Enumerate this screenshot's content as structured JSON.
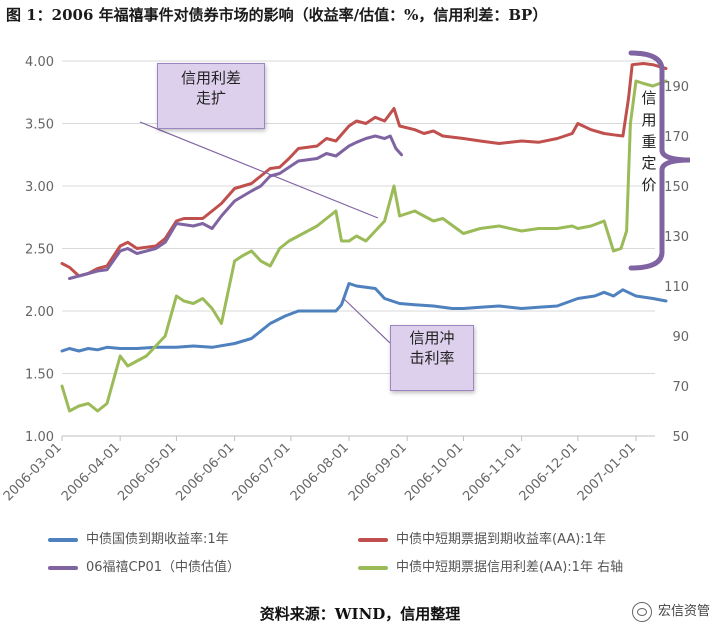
{
  "title": "图 1：2006 年福禧事件对债券市场的影响（收益率/估值：%，信用利差：BP）",
  "callouts": {
    "spread_widen": "信用利差\n走扩",
    "credit_shock": "信用冲\n击利率",
    "repricing": "信用重定价"
  },
  "source": "资料来源：WIND，信用整理",
  "brand": "宏信资管",
  "colors": {
    "gov": "#4e81bd",
    "mtn_yield": "#c0504d",
    "cp01": "#8064a2",
    "spread": "#9bbb59",
    "callout_bg": "#ddd0ec",
    "brace": "#8064a2"
  },
  "chart_data": {
    "type": "line",
    "x_ticks": [
      "2006-03-01",
      "2006-04-01",
      "2006-05-01",
      "2006-06-01",
      "2006-07-01",
      "2006-08-01",
      "2006-09-01",
      "2006-10-01",
      "2006-11-01",
      "2006-12-01",
      "2007-01-01"
    ],
    "y_left": {
      "ticks": [
        "1.00",
        "1.50",
        "2.00",
        "2.50",
        "3.00",
        "3.50",
        "4.00"
      ],
      "range": [
        1.0,
        4.0
      ]
    },
    "y_right": {
      "ticks": [
        "50",
        "70",
        "90",
        "110",
        "130",
        "150",
        "170",
        "190"
      ],
      "range": [
        50,
        200
      ]
    },
    "series": [
      {
        "name": "中债国债到期收益率:1年",
        "axis": "left",
        "color_key": "gov",
        "points": [
          [
            "2006-03-01",
            1.68
          ],
          [
            "2006-03-05",
            1.7
          ],
          [
            "2006-03-10",
            1.68
          ],
          [
            "2006-03-15",
            1.7
          ],
          [
            "2006-03-20",
            1.69
          ],
          [
            "2006-03-25",
            1.71
          ],
          [
            "2006-04-01",
            1.7
          ],
          [
            "2006-04-10",
            1.7
          ],
          [
            "2006-04-20",
            1.71
          ],
          [
            "2006-05-01",
            1.71
          ],
          [
            "2006-05-10",
            1.72
          ],
          [
            "2006-05-20",
            1.71
          ],
          [
            "2006-06-01",
            1.74
          ],
          [
            "2006-06-10",
            1.78
          ],
          [
            "2006-06-20",
            1.9
          ],
          [
            "2006-06-28",
            1.96
          ],
          [
            "2006-07-05",
            2.0
          ],
          [
            "2006-07-15",
            2.0
          ],
          [
            "2006-07-25",
            2.0
          ],
          [
            "2006-07-28",
            2.05
          ],
          [
            "2006-08-01",
            2.22
          ],
          [
            "2006-08-05",
            2.2
          ],
          [
            "2006-08-15",
            2.18
          ],
          [
            "2006-08-20",
            2.1
          ],
          [
            "2006-08-28",
            2.06
          ],
          [
            "2006-09-05",
            2.05
          ],
          [
            "2006-09-15",
            2.04
          ],
          [
            "2006-09-25",
            2.02
          ],
          [
            "2006-10-01",
            2.02
          ],
          [
            "2006-10-10",
            2.03
          ],
          [
            "2006-10-20",
            2.04
          ],
          [
            "2006-11-01",
            2.02
          ],
          [
            "2006-11-10",
            2.03
          ],
          [
            "2006-11-20",
            2.04
          ],
          [
            "2006-12-01",
            2.1
          ],
          [
            "2006-12-10",
            2.12
          ],
          [
            "2006-12-15",
            2.15
          ],
          [
            "2006-12-20",
            2.12
          ],
          [
            "2006-12-25",
            2.17
          ],
          [
            "2007-01-01",
            2.12
          ],
          [
            "2007-01-10",
            2.1
          ],
          [
            "2007-01-17",
            2.08
          ]
        ]
      },
      {
        "name": "中债中短期票据到期收益率(AA):1年",
        "axis": "left",
        "color_key": "mtn_yield",
        "points": [
          [
            "2006-03-01",
            2.38
          ],
          [
            "2006-03-05",
            2.35
          ],
          [
            "2006-03-10",
            2.28
          ],
          [
            "2006-03-15",
            2.3
          ],
          [
            "2006-03-20",
            2.34
          ],
          [
            "2006-03-25",
            2.36
          ],
          [
            "2006-04-01",
            2.52
          ],
          [
            "2006-04-05",
            2.55
          ],
          [
            "2006-04-10",
            2.5
          ],
          [
            "2006-04-20",
            2.52
          ],
          [
            "2006-04-25",
            2.58
          ],
          [
            "2006-05-01",
            2.72
          ],
          [
            "2006-05-05",
            2.74
          ],
          [
            "2006-05-15",
            2.74
          ],
          [
            "2006-05-20",
            2.8
          ],
          [
            "2006-05-25",
            2.86
          ],
          [
            "2006-06-01",
            2.98
          ],
          [
            "2006-06-10",
            3.02
          ],
          [
            "2006-06-15",
            3.08
          ],
          [
            "2006-06-20",
            3.14
          ],
          [
            "2006-06-25",
            3.15
          ],
          [
            "2006-06-30",
            3.22
          ],
          [
            "2006-07-05",
            3.3
          ],
          [
            "2006-07-15",
            3.32
          ],
          [
            "2006-07-20",
            3.38
          ],
          [
            "2006-07-25",
            3.36
          ],
          [
            "2006-08-01",
            3.48
          ],
          [
            "2006-08-05",
            3.52
          ],
          [
            "2006-08-10",
            3.5
          ],
          [
            "2006-08-15",
            3.55
          ],
          [
            "2006-08-20",
            3.52
          ],
          [
            "2006-08-25",
            3.62
          ],
          [
            "2006-08-28",
            3.48
          ],
          [
            "2006-09-05",
            3.45
          ],
          [
            "2006-09-10",
            3.42
          ],
          [
            "2006-09-15",
            3.44
          ],
          [
            "2006-09-20",
            3.4
          ],
          [
            "2006-10-01",
            3.38
          ],
          [
            "2006-10-10",
            3.36
          ],
          [
            "2006-10-20",
            3.34
          ],
          [
            "2006-11-01",
            3.36
          ],
          [
            "2006-11-10",
            3.35
          ],
          [
            "2006-11-20",
            3.38
          ],
          [
            "2006-11-28",
            3.42
          ],
          [
            "2006-12-01",
            3.5
          ],
          [
            "2006-12-08",
            3.45
          ],
          [
            "2006-12-15",
            3.42
          ],
          [
            "2006-12-20",
            3.41
          ],
          [
            "2006-12-25",
            3.4
          ],
          [
            "2006-12-28",
            3.7
          ],
          [
            "2006-12-30",
            3.97
          ],
          [
            "2007-01-05",
            3.98
          ],
          [
            "2007-01-10",
            3.97
          ],
          [
            "2007-01-17",
            3.94
          ]
        ]
      },
      {
        "name": "06福禧CP01（中债估值）",
        "axis": "left",
        "color_key": "cp01",
        "points": [
          [
            "2006-03-05",
            2.26
          ],
          [
            "2006-03-10",
            2.28
          ],
          [
            "2006-03-15",
            2.3
          ],
          [
            "2006-03-20",
            2.32
          ],
          [
            "2006-03-25",
            2.33
          ],
          [
            "2006-04-01",
            2.48
          ],
          [
            "2006-04-05",
            2.5
          ],
          [
            "2006-04-10",
            2.46
          ],
          [
            "2006-04-20",
            2.5
          ],
          [
            "2006-04-25",
            2.55
          ],
          [
            "2006-05-01",
            2.7
          ],
          [
            "2006-05-10",
            2.68
          ],
          [
            "2006-05-15",
            2.7
          ],
          [
            "2006-05-20",
            2.66
          ],
          [
            "2006-05-25",
            2.76
          ],
          [
            "2006-06-01",
            2.88
          ],
          [
            "2006-06-10",
            2.96
          ],
          [
            "2006-06-15",
            3.0
          ],
          [
            "2006-06-20",
            3.08
          ],
          [
            "2006-06-25",
            3.1
          ],
          [
            "2006-06-30",
            3.15
          ],
          [
            "2006-07-05",
            3.2
          ],
          [
            "2006-07-15",
            3.22
          ],
          [
            "2006-07-20",
            3.26
          ],
          [
            "2006-07-25",
            3.24
          ],
          [
            "2006-08-01",
            3.32
          ],
          [
            "2006-08-05",
            3.35
          ],
          [
            "2006-08-10",
            3.38
          ],
          [
            "2006-08-15",
            3.4
          ],
          [
            "2006-08-20",
            3.38
          ],
          [
            "2006-08-23",
            3.4
          ],
          [
            "2006-08-26",
            3.3
          ],
          [
            "2006-08-29",
            3.25
          ]
        ]
      },
      {
        "name": "中债中短期票据信用利差(AA):1年 右轴",
        "axis": "right",
        "color_key": "spread",
        "points": [
          [
            "2006-03-01",
            70
          ],
          [
            "2006-03-05",
            60
          ],
          [
            "2006-03-10",
            62
          ],
          [
            "2006-03-15",
            63
          ],
          [
            "2006-03-20",
            60
          ],
          [
            "2006-03-25",
            63
          ],
          [
            "2006-04-01",
            82
          ],
          [
            "2006-04-05",
            78
          ],
          [
            "2006-04-10",
            80
          ],
          [
            "2006-04-15",
            82
          ],
          [
            "2006-04-20",
            86
          ],
          [
            "2006-04-25",
            90
          ],
          [
            "2006-05-01",
            106
          ],
          [
            "2006-05-05",
            104
          ],
          [
            "2006-05-10",
            103
          ],
          [
            "2006-05-15",
            105
          ],
          [
            "2006-05-20",
            101
          ],
          [
            "2006-05-25",
            95
          ],
          [
            "2006-06-01",
            120
          ],
          [
            "2006-06-05",
            122
          ],
          [
            "2006-06-10",
            124
          ],
          [
            "2006-06-15",
            120
          ],
          [
            "2006-06-20",
            118
          ],
          [
            "2006-06-25",
            125
          ],
          [
            "2006-06-30",
            128
          ],
          [
            "2006-07-05",
            130
          ],
          [
            "2006-07-10",
            132
          ],
          [
            "2006-07-15",
            134
          ],
          [
            "2006-07-20",
            137
          ],
          [
            "2006-07-25",
            140
          ],
          [
            "2006-07-28",
            128
          ],
          [
            "2006-08-01",
            128
          ],
          [
            "2006-08-05",
            130
          ],
          [
            "2006-08-10",
            128
          ],
          [
            "2006-08-15",
            132
          ],
          [
            "2006-08-20",
            136
          ],
          [
            "2006-08-25",
            150
          ],
          [
            "2006-08-28",
            138
          ],
          [
            "2006-09-05",
            140
          ],
          [
            "2006-09-10",
            138
          ],
          [
            "2006-09-15",
            136
          ],
          [
            "2006-09-20",
            137
          ],
          [
            "2006-10-01",
            131
          ],
          [
            "2006-10-10",
            133
          ],
          [
            "2006-10-20",
            134
          ],
          [
            "2006-11-01",
            132
          ],
          [
            "2006-11-10",
            133
          ],
          [
            "2006-11-20",
            133
          ],
          [
            "2006-11-28",
            134
          ],
          [
            "2006-12-01",
            133
          ],
          [
            "2006-12-08",
            134
          ],
          [
            "2006-12-15",
            136
          ],
          [
            "2006-12-20",
            124
          ],
          [
            "2006-12-24",
            125
          ],
          [
            "2006-12-27",
            132
          ],
          [
            "2006-12-29",
            175
          ],
          [
            "2007-01-01",
            192
          ],
          [
            "2007-01-05",
            191
          ],
          [
            "2007-01-10",
            190
          ],
          [
            "2007-01-17",
            192
          ]
        ]
      }
    ]
  }
}
